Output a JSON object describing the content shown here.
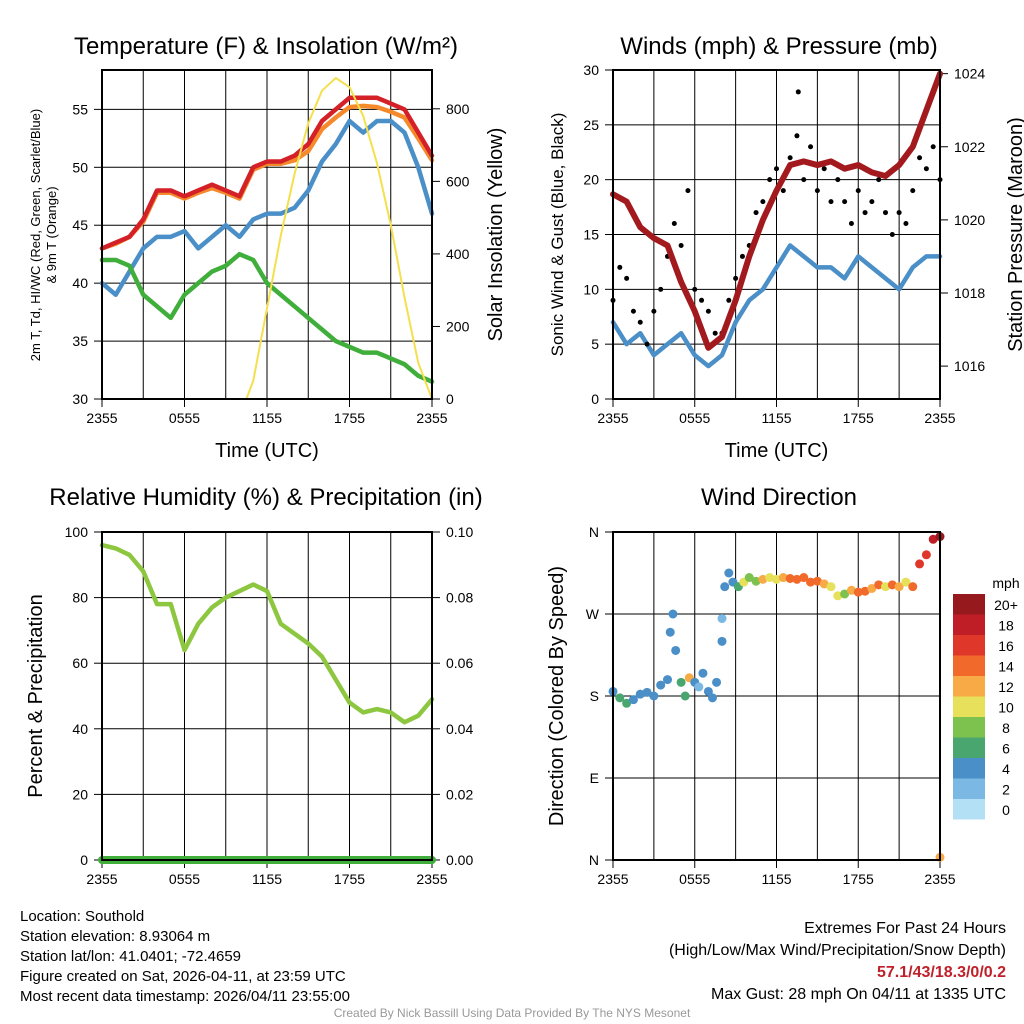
{
  "xticks": [
    "2355",
    "0555",
    "1155",
    "1755",
    "2355"
  ],
  "credit": "Created By Nick Bassill Using Data Provided By The NYS Mesonet",
  "info": {
    "location": "Location: Southold",
    "elevation": "Station elevation: 8.93064 m",
    "latlon": "Station lat/lon: 41.0401; -72.4659",
    "created": "Figure created on Sat, 2026-04-11, at 23:59 UTC",
    "recent": "Most recent data timestamp: 2026/04/11 23:55:00"
  },
  "extremes": {
    "title": "Extremes For Past 24 Hours",
    "subtitle": "(High/Low/Max Wind/Precipitation/Snow Depth)",
    "values": "57.1/43/18.3/0/0.2",
    "gust": "Max Gust: 28 mph On 04/11 at 1335 UTC"
  },
  "chart_data": [
    {
      "type": "line",
      "title": "Temperature (F) & Insolation (W/m²)",
      "xlabel": "Time (UTC)",
      "ylabel": "2m T, Td, HI/WC (Red, Green, Scarlet/Blue) & 9m T (Orange)",
      "ylabel2": "Solar Insolation (Yellow)",
      "ylim": [
        30,
        58.4
      ],
      "yticks": [
        30,
        35,
        40,
        45,
        50,
        55
      ],
      "ylim2": [
        0,
        907
      ],
      "yticks2": [
        0,
        200,
        400,
        600,
        800
      ],
      "x_hours": [
        0,
        1,
        2,
        3,
        4,
        5,
        6,
        7,
        8,
        9,
        10,
        11,
        12,
        13,
        14,
        15,
        16,
        17,
        18,
        19,
        20,
        21,
        22,
        23,
        24
      ],
      "series": [
        {
          "name": "9m T",
          "color": "#f58a2c",
          "axis": "left",
          "values": [
            43,
            43.4,
            44,
            45.3,
            47.8,
            47.8,
            47.3,
            47.8,
            48.2,
            47.8,
            47.3,
            49.8,
            50.3,
            50.3,
            50.6,
            51.4,
            53.3,
            54.3,
            55.2,
            55.3,
            55.2,
            54.8,
            54.3,
            52.5,
            50.6
          ]
        },
        {
          "name": "2m T",
          "color": "#d42027",
          "axis": "left",
          "values": [
            43,
            43.5,
            44,
            45.5,
            48,
            48,
            47.5,
            48,
            48.5,
            48,
            47.5,
            50,
            50.5,
            50.5,
            51,
            52,
            54,
            55,
            56,
            56,
            56,
            55.5,
            55,
            53,
            51
          ]
        },
        {
          "name": "HI/WC",
          "color": "#4a8fc8",
          "axis": "left",
          "values": [
            40,
            39,
            41,
            43,
            44,
            44,
            44.5,
            43,
            44,
            45,
            44,
            45.5,
            46,
            46,
            46.5,
            48,
            50.5,
            52,
            54,
            53,
            54,
            54,
            53,
            50,
            46
          ]
        },
        {
          "name": "2m Td",
          "color": "#3fae3a",
          "axis": "left",
          "values": [
            42,
            42,
            41.5,
            39,
            38,
            37,
            39,
            40,
            41,
            41.5,
            42.5,
            42,
            40,
            39,
            38,
            37,
            36,
            35,
            34.5,
            34,
            34,
            33.5,
            33,
            32,
            31.5
          ]
        },
        {
          "name": "Solar Insolation",
          "color": "#f4e04d",
          "axis": "right",
          "x": [
            0,
            10.5,
            11,
            12,
            13,
            14,
            15,
            16,
            17,
            18,
            19,
            20,
            21,
            22,
            23,
            24
          ],
          "values": [
            0,
            0,
            50,
            250,
            450,
            620,
            760,
            850,
            885,
            860,
            780,
            650,
            480,
            280,
            100,
            0
          ]
        }
      ]
    },
    {
      "type": "line",
      "title": "Winds (mph) & Pressure (mb)",
      "xlabel": "Time (UTC)",
      "ylabel": "Sonic Wind & Gust (Blue, Black)",
      "ylabel2": "Station Pressure (Maroon)",
      "ylim": [
        0,
        30
      ],
      "yticks": [
        0,
        5,
        10,
        15,
        20,
        25,
        30
      ],
      "ylim2": [
        1015.1,
        1024.1
      ],
      "yticks2": [
        1016,
        1018,
        1020,
        1022,
        1024
      ],
      "x_hours": [
        0,
        1,
        2,
        3,
        4,
        5,
        6,
        7,
        8,
        9,
        10,
        11,
        12,
        13,
        14,
        15,
        16,
        17,
        18,
        19,
        20,
        21,
        22,
        23,
        24
      ],
      "series": [
        {
          "name": "Sonic Wind",
          "color": "#4a8fc8",
          "axis": "left",
          "values": [
            7,
            5,
            6,
            4,
            5,
            6,
            4,
            3,
            4,
            7,
            9,
            10,
            12,
            14,
            13,
            12,
            12,
            11,
            13,
            12,
            11,
            10,
            12,
            13,
            13
          ]
        },
        {
          "name": "Gust",
          "color": "#000000",
          "axis": "left",
          "style": "dots",
          "x": [
            0,
            0.5,
            1,
            1.5,
            2,
            2.5,
            3,
            3.5,
            4,
            4.5,
            5,
            5.5,
            6,
            6.5,
            7,
            7.5,
            8,
            8.5,
            9,
            9.5,
            10,
            10.5,
            11,
            11.5,
            12,
            12.5,
            13,
            13.5,
            13.6,
            14,
            14.5,
            15,
            15.5,
            16,
            16.5,
            17,
            17.5,
            18,
            18.5,
            19,
            19.5,
            20,
            20.5,
            21,
            21.5,
            22,
            22.5,
            23,
            23.5,
            24
          ],
          "values": [
            9,
            12,
            11,
            8,
            7,
            5,
            8,
            10,
            13,
            16,
            14,
            19,
            10,
            9,
            8,
            6,
            6,
            9,
            11,
            13,
            14,
            17,
            18,
            20,
            21,
            19,
            22,
            24,
            28,
            20,
            23,
            19,
            21,
            18,
            20,
            18,
            16,
            19,
            17,
            18,
            20,
            17,
            15,
            17,
            16,
            19,
            22,
            21,
            23,
            20
          ]
        },
        {
          "name": "Station Pressure",
          "color": "#a31a1e",
          "axis": "right",
          "values": [
            1020.7,
            1020.5,
            1019.8,
            1019.5,
            1019.3,
            1018.3,
            1017.5,
            1016.5,
            1016.8,
            1017.8,
            1019,
            1020,
            1020.8,
            1021.5,
            1021.6,
            1021.5,
            1021.6,
            1021.4,
            1021.5,
            1021.3,
            1021.2,
            1021.5,
            1022,
            1023,
            1024
          ]
        }
      ]
    },
    {
      "type": "line",
      "title": "Relative Humidity (%) & Precipitation (in)",
      "ylabel": "Percent & Precipitation",
      "ylim": [
        0,
        100
      ],
      "yticks": [
        0,
        20,
        40,
        60,
        80,
        100
      ],
      "ylim2": [
        0,
        0.1
      ],
      "yticks2": [
        "0.00",
        "0.02",
        "0.04",
        "0.06",
        "0.08",
        "0.10"
      ],
      "x_hours": [
        0,
        1,
        2,
        3,
        4,
        5,
        6,
        7,
        8,
        9,
        10,
        11,
        12,
        13,
        14,
        15,
        16,
        17,
        18,
        19,
        20,
        21,
        22,
        23,
        24
      ],
      "series": [
        {
          "name": "Relative Humidity",
          "color": "#8dc63f",
          "axis": "left",
          "values": [
            96,
            95,
            93,
            88,
            78,
            78,
            64,
            72,
            77,
            80,
            82,
            84,
            82,
            72,
            69,
            66,
            62,
            55,
            48,
            45,
            46,
            45,
            42,
            44,
            49
          ]
        },
        {
          "name": "Precipitation",
          "color": "#3fae3a",
          "axis": "right",
          "values": [
            0,
            0,
            0,
            0,
            0,
            0,
            0,
            0,
            0,
            0,
            0,
            0,
            0,
            0,
            0,
            0,
            0,
            0,
            0,
            0,
            0,
            0,
            0,
            0,
            0
          ]
        }
      ]
    },
    {
      "type": "scatter",
      "title": "Wind Direction",
      "ylabel": "Direction (Colored By Speed)",
      "ylim": [
        0,
        360
      ],
      "yticks": [
        {
          "v": 0,
          "label": "N"
        },
        {
          "v": 90,
          "label": "E"
        },
        {
          "v": 180,
          "label": "S"
        },
        {
          "v": 270,
          "label": "W"
        },
        {
          "v": 360,
          "label": "N"
        }
      ],
      "legend": {
        "title": "mph",
        "labels": [
          "20+",
          "18",
          "16",
          "14",
          "12",
          "10",
          "8",
          "6",
          "4",
          "2",
          "0"
        ],
        "colors": [
          "#961a1d",
          "#c01e27",
          "#e0372b",
          "#f26a2b",
          "#f8aa46",
          "#e6e05a",
          "#7dc24e",
          "#48a66e",
          "#4a8fc8",
          "#7bb8e3",
          "#b3e0f5"
        ],
        "placement": "right"
      },
      "points": [
        [
          0,
          185,
          5
        ],
        [
          0.5,
          178,
          6
        ],
        [
          1,
          172,
          6
        ],
        [
          1.5,
          176,
          5
        ],
        [
          2,
          182,
          4
        ],
        [
          2.5,
          184,
          4
        ],
        [
          3,
          180,
          4
        ],
        [
          3.5,
          192,
          4
        ],
        [
          4,
          198,
          4
        ],
        [
          4.2,
          250,
          4
        ],
        [
          4.4,
          270,
          4
        ],
        [
          4.6,
          230,
          4
        ],
        [
          5,
          195,
          6
        ],
        [
          5.3,
          180,
          7
        ],
        [
          5.6,
          200,
          12
        ],
        [
          6,
          195,
          4
        ],
        [
          6.3,
          190,
          3
        ],
        [
          6.6,
          205,
          4
        ],
        [
          7,
          185,
          4
        ],
        [
          7.3,
          178,
          5
        ],
        [
          7.6,
          195,
          5
        ],
        [
          8,
          240,
          4
        ],
        [
          8,
          265,
          2
        ],
        [
          8.2,
          300,
          5
        ],
        [
          8.5,
          315,
          5
        ],
        [
          8.8,
          305,
          4
        ],
        [
          9.2,
          300,
          6
        ],
        [
          9.6,
          305,
          10
        ],
        [
          10,
          310,
          8
        ],
        [
          10.5,
          306,
          9
        ],
        [
          11,
          308,
          12
        ],
        [
          11.5,
          310,
          11
        ],
        [
          12,
          308,
          10
        ],
        [
          12.5,
          310,
          12
        ],
        [
          13,
          309,
          14
        ],
        [
          13.5,
          308,
          15
        ],
        [
          14,
          310,
          14
        ],
        [
          14.5,
          305,
          15
        ],
        [
          15,
          306,
          14
        ],
        [
          15.5,
          303,
          13
        ],
        [
          16,
          300,
          11
        ],
        [
          16.5,
          290,
          10
        ],
        [
          17,
          292,
          8
        ],
        [
          17.5,
          296,
          12
        ],
        [
          18,
          294,
          14
        ],
        [
          18.5,
          295,
          15
        ],
        [
          19,
          298,
          13
        ],
        [
          19.5,
          302,
          14
        ],
        [
          20,
          300,
          11
        ],
        [
          20.5,
          302,
          15
        ],
        [
          21,
          300,
          12
        ],
        [
          21.5,
          305,
          10
        ],
        [
          22,
          300,
          14
        ],
        [
          22.5,
          325,
          16
        ],
        [
          23,
          335,
          16
        ],
        [
          23.5,
          352,
          18
        ],
        [
          24,
          355,
          20
        ],
        [
          24,
          3,
          12
        ]
      ]
    }
  ]
}
